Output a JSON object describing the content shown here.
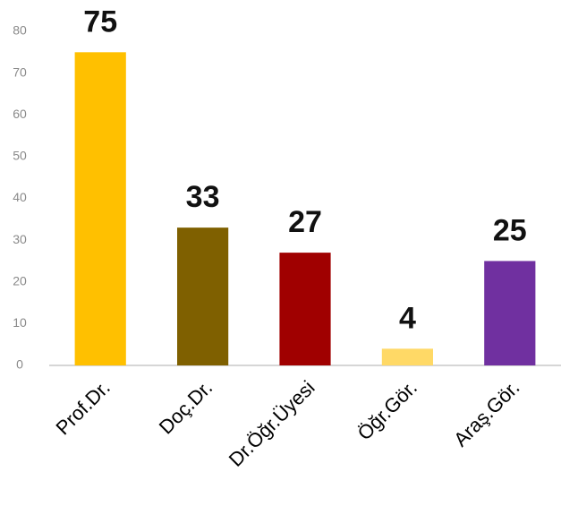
{
  "chart_data": {
    "type": "bar",
    "categories": [
      "Prof.Dr.",
      "Doç.Dr.",
      "Dr.Öğr.Üyesi",
      "Öğr.Gör.",
      "Araş.Gör."
    ],
    "values": [
      75,
      33,
      27,
      4,
      25
    ],
    "colors": [
      "#ffc000",
      "#7f6000",
      "#a00000",
      "#ffd966",
      "#7030a0"
    ],
    "ylim": [
      0,
      80
    ],
    "yticks": [
      0,
      10,
      20,
      30,
      40,
      50,
      60,
      70,
      80
    ],
    "grid": false
  }
}
